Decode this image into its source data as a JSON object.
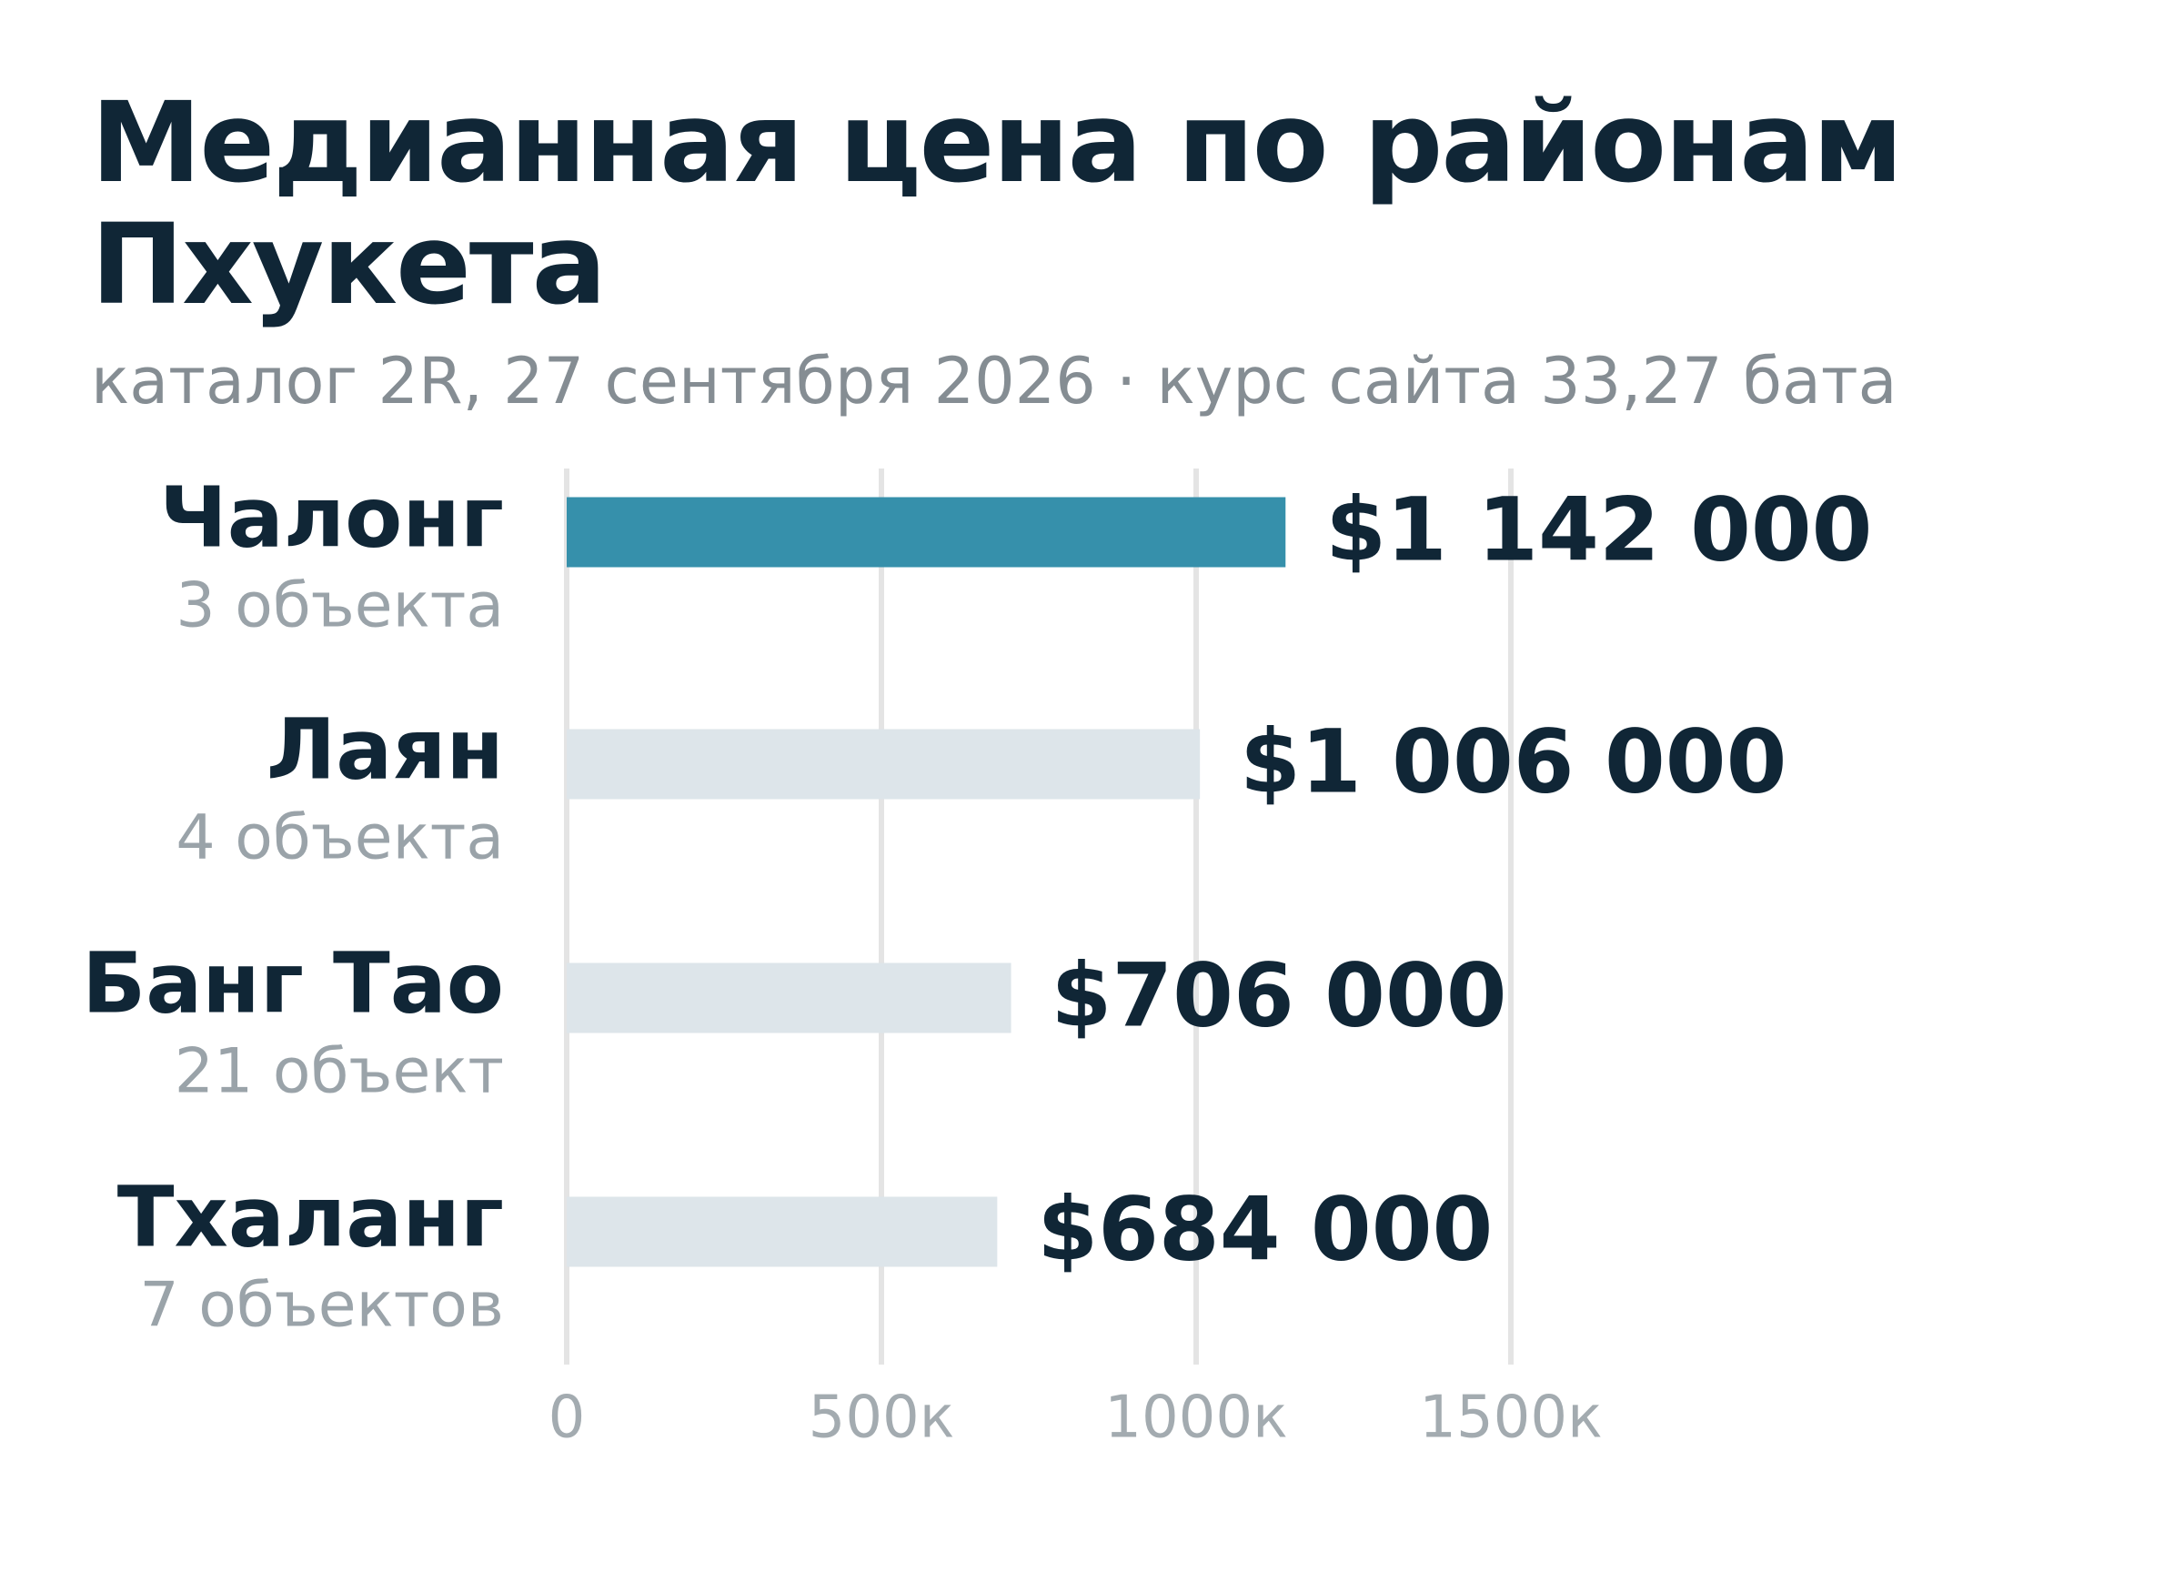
{
  "chart_data": {
    "type": "bar",
    "orientation": "horizontal",
    "title": "Медианная цена по районам Пхукета",
    "subtitle": "каталог 2R, 27 сентября 2026 · курс сайта 33,27 бата",
    "categories": [
      "Чалонг",
      "Лаян",
      "Банг Тао",
      "Тхаланг"
    ],
    "category_notes": [
      "3 объекта",
      "4 объекта",
      "21 объект",
      "7 объектов"
    ],
    "values": [
      1142000,
      1006000,
      706000,
      684000
    ],
    "value_labels": [
      "$1 142 000",
      "$1 006 000",
      "$706 000",
      "$684 000"
    ],
    "colors": [
      "#3690ab",
      "#dde5ea",
      "#dde5ea",
      "#dde5ea"
    ],
    "xlim": [
      0,
      1500000
    ],
    "xticks": [
      0,
      {
        "value": 500000,
        "label": "500к"
      },
      {
        "value": 1000000,
        "label": "1000к"
      },
      {
        "value": 1500000,
        "label": "1500к"
      }
    ],
    "grid": true
  }
}
